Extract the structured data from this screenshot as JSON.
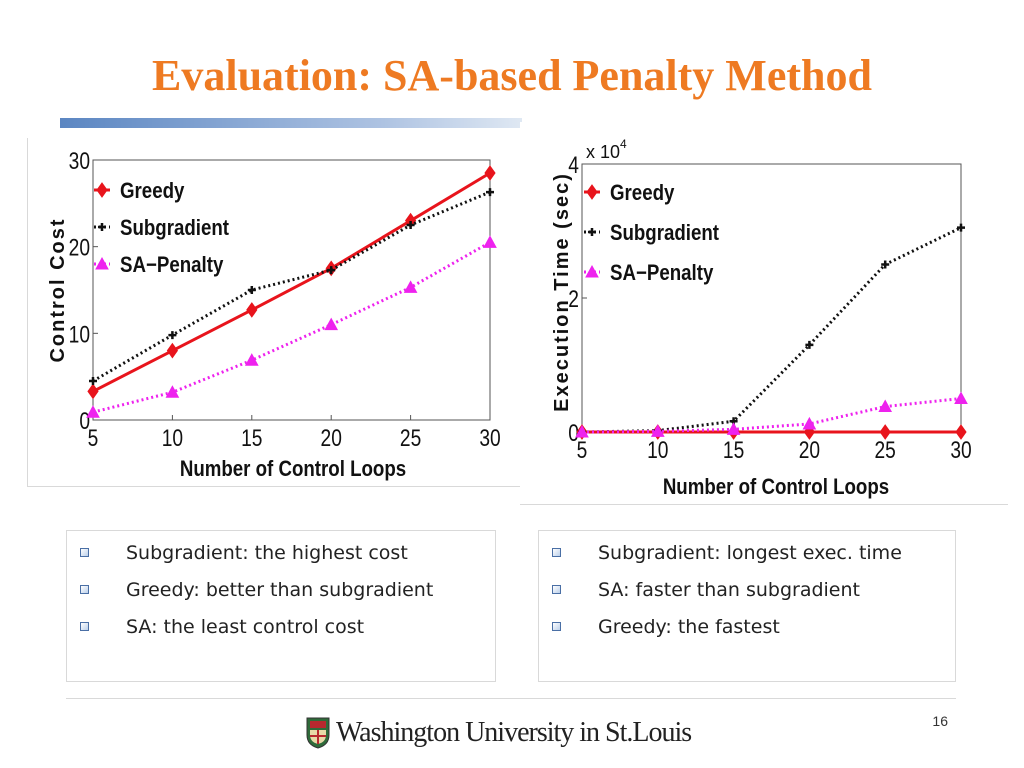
{
  "slide": {
    "title": "Evaluation: SA-based Penalty Method",
    "page_number": "16",
    "logo_text": "Washington University in St.Louis"
  },
  "bullets_left": [
    "Subgradient: the highest cost",
    "Greedy: better than subgradient",
    "SA: the least control cost"
  ],
  "bullets_right": [
    "Subgradient: longest exec. time",
    "SA: faster than subgradient",
    "Greedy: the fastest"
  ],
  "chart_data": [
    {
      "type": "line",
      "xlabel": "Number of Control Loops",
      "ylabel": "Control Cost",
      "x": [
        5,
        10,
        15,
        20,
        25,
        30
      ],
      "xticks": [
        "5",
        "10",
        "15",
        "20",
        "25",
        "30"
      ],
      "yticks": [
        "0",
        "10",
        "20",
        "30"
      ],
      "xlim": [
        5,
        30
      ],
      "ylim": [
        0,
        30
      ],
      "legend_position": "top-left",
      "series": [
        {
          "name": "Greedy",
          "color": "#e8141c",
          "style": "solid",
          "marker": "diamond",
          "values": [
            3.3,
            8.0,
            12.7,
            17.5,
            23.0,
            28.5
          ]
        },
        {
          "name": "Subgradient",
          "color": "#111111",
          "style": "dotted",
          "marker": "plus",
          "values": [
            4.5,
            9.8,
            15.0,
            17.3,
            22.5,
            26.3
          ]
        },
        {
          "name": "SA−Penalty",
          "color": "#ee22ee",
          "style": "dotted",
          "marker": "triangle",
          "values": [
            0.9,
            3.2,
            6.9,
            11.0,
            15.3,
            20.5
          ]
        }
      ]
    },
    {
      "type": "line",
      "xlabel": "Number of Control Loops",
      "ylabel": "Execution Time (sec)",
      "y_multiplier": "x 10",
      "y_multiplier_exp": "4",
      "x": [
        5,
        10,
        15,
        20,
        25,
        30
      ],
      "xticks": [
        "5",
        "10",
        "15",
        "20",
        "25",
        "30"
      ],
      "yticks": [
        "0",
        "2",
        "4"
      ],
      "xlim": [
        5,
        30
      ],
      "ylim": [
        0,
        4
      ],
      "legend_position": "top-left",
      "series": [
        {
          "name": "Greedy",
          "color": "#e8141c",
          "style": "solid",
          "marker": "diamond",
          "values": [
            0.0,
            0.0,
            0.0,
            0.0,
            0.0,
            0.0
          ]
        },
        {
          "name": "Subgradient",
          "color": "#111111",
          "style": "dotted",
          "marker": "plus",
          "values": [
            0.0,
            0.02,
            0.16,
            1.3,
            2.5,
            3.05
          ]
        },
        {
          "name": "SA−Penalty",
          "color": "#ee22ee",
          "style": "dotted",
          "marker": "triangle",
          "values": [
            0.0,
            0.01,
            0.04,
            0.12,
            0.38,
            0.5
          ]
        }
      ]
    }
  ]
}
